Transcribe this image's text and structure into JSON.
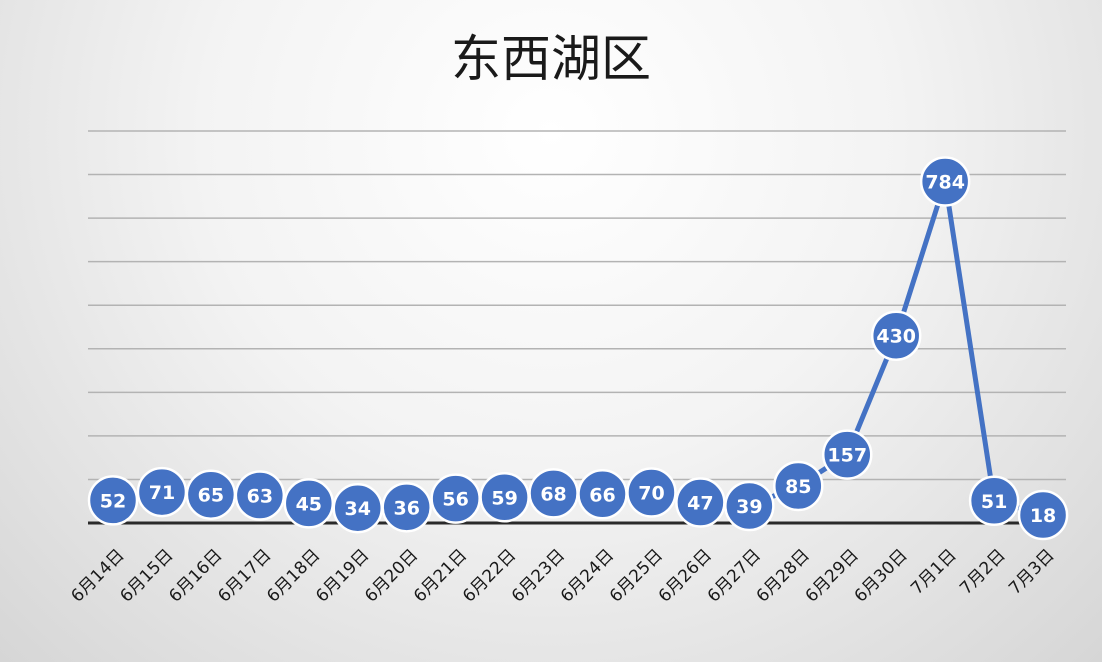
{
  "chart_data": {
    "type": "line",
    "title": "东西湖区",
    "xlabel": "",
    "ylabel": "",
    "categories": [
      "6月14日",
      "6月15日",
      "6月16日",
      "6月17日",
      "6月18日",
      "6月19日",
      "6月20日",
      "6月21日",
      "6月22日",
      "6月23日",
      "6月24日",
      "6月25日",
      "6月26日",
      "6月27日",
      "6月28日",
      "6月29日",
      "6月30日",
      "7月1日",
      "7月2日",
      "7月3日"
    ],
    "series": [
      {
        "values": [
          52,
          71,
          65,
          63,
          45,
          34,
          36,
          56,
          59,
          68,
          66,
          70,
          47,
          39,
          85,
          157,
          430,
          784,
          51,
          18
        ]
      }
    ],
    "ylim": [
      0,
      900
    ],
    "grid": true,
    "legend": "none",
    "data_labels": true,
    "colors": {
      "series": "#4472c4",
      "grid": "#b3b3b3",
      "axis": "#2a2a2a"
    }
  }
}
